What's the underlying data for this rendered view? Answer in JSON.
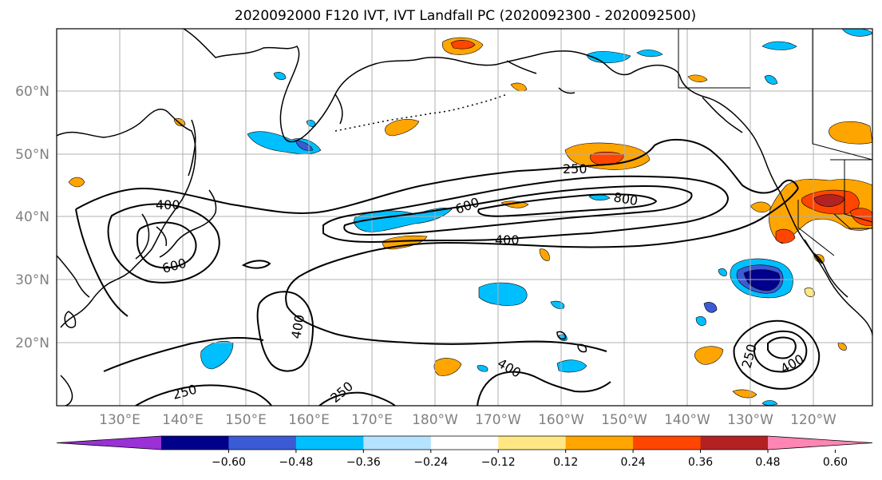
{
  "title": "2020092000 F120 IVT, IVT Landfall PC (2020092300 - 2020092500)",
  "lat_ticks": [
    "60°N",
    "50°N",
    "40°N",
    "30°N",
    "20°N"
  ],
  "lon_ticks": [
    "130°E",
    "140°E",
    "150°E",
    "160°E",
    "170°E",
    "180°W",
    "170°W",
    "160°W",
    "150°W",
    "140°W",
    "130°W",
    "120°W"
  ],
  "contour_labels": [
    "400",
    "600",
    "600",
    "400",
    "250",
    "800",
    "400",
    "400",
    "250",
    "250",
    "400",
    "250"
  ],
  "colorbar": {
    "colors": [
      "#9b30d6",
      "#00008b",
      "#3b5bd4",
      "#00bfff",
      "#b4e3ff",
      "#ffffff",
      "#ffe884",
      "#ffa500",
      "#ff4500",
      "#b22222",
      "#ff85b4"
    ],
    "ticks": [
      "−0.60",
      "−0.48",
      "−0.36",
      "−0.24",
      "−0.12",
      "0.12",
      "0.24",
      "0.36",
      "0.48",
      "0.60"
    ]
  },
  "colors": {
    "coastline": "#000000",
    "grid": "#b0b0b0",
    "contour": "#000000"
  }
}
